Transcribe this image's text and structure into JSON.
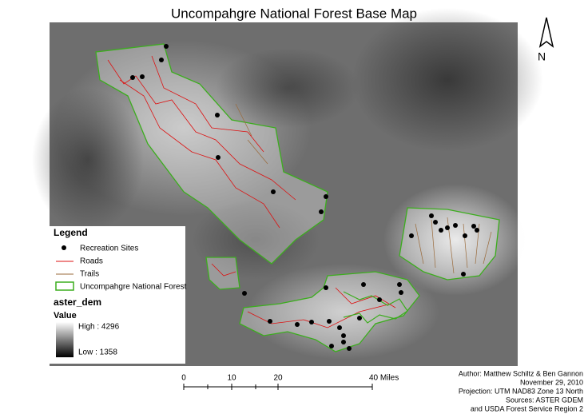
{
  "title": "Uncompahgre National Forest Base Map",
  "north_arrow": "N",
  "legend": {
    "title": "Legend",
    "items": [
      "Recreation Sites",
      "Roads",
      "Trails",
      "Uncompahgre National Forest"
    ],
    "raster_name": "aster_dem",
    "raster_field": "Value",
    "high": "High : 4296",
    "low": "Low : 1358"
  },
  "scale_bar": {
    "labels": [
      "0",
      "10",
      "20",
      "40 Miles"
    ]
  },
  "credits": [
    "Author: Matthew Schiltz & Ben Gannon",
    "November 29, 2010",
    "Projection: UTM NAD83 Zone 13 North",
    "Sources: ASTER GDEM",
    "and USDA Forest Service Region 2"
  ]
}
